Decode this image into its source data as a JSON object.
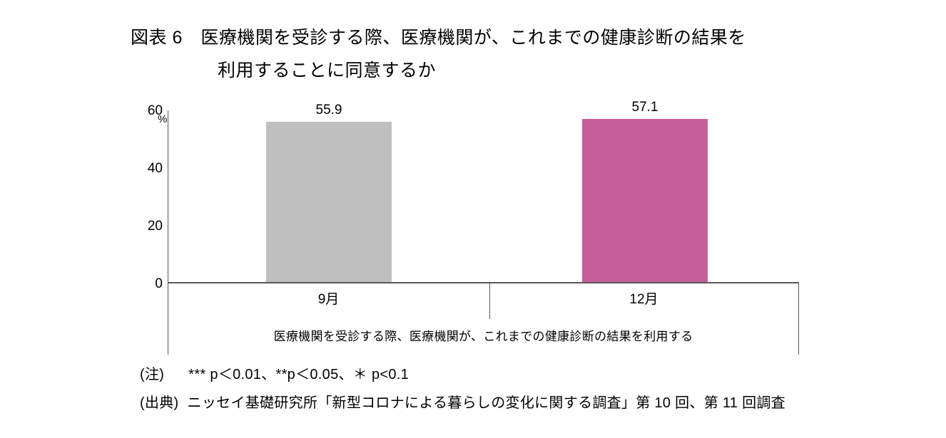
{
  "figure": {
    "title_line1": "図表 6　医療機関を受診する際、医療機関が、これまでの健康診断の結果を",
    "title_line2": "利用することに同意するか"
  },
  "chart_data": {
    "type": "bar",
    "categories": [
      "9月",
      "12月"
    ],
    "values": [
      55.9,
      57.1
    ],
    "value_labels": [
      "55.9",
      "57.1"
    ],
    "series_label": "医療機関を受診する際、医療機関が、これまでの健康診断の結果を利用する",
    "ylabel": "%",
    "ylim": [
      0,
      60
    ],
    "yticks": [
      0,
      20,
      40,
      60
    ],
    "bar_colors": [
      "#bfbfbf",
      "#c55f9c"
    ],
    "grid": false,
    "legend": "none"
  },
  "notes": {
    "note_label": "(注)",
    "note_text": "*** p＜0.01、**p＜0.05、＊ p<0.1",
    "source_label": "(出典)",
    "source_text": "ニッセイ基礎研究所「新型コロナによる暮らしの変化に関する調査」第 10 回、第 11 回調査"
  }
}
